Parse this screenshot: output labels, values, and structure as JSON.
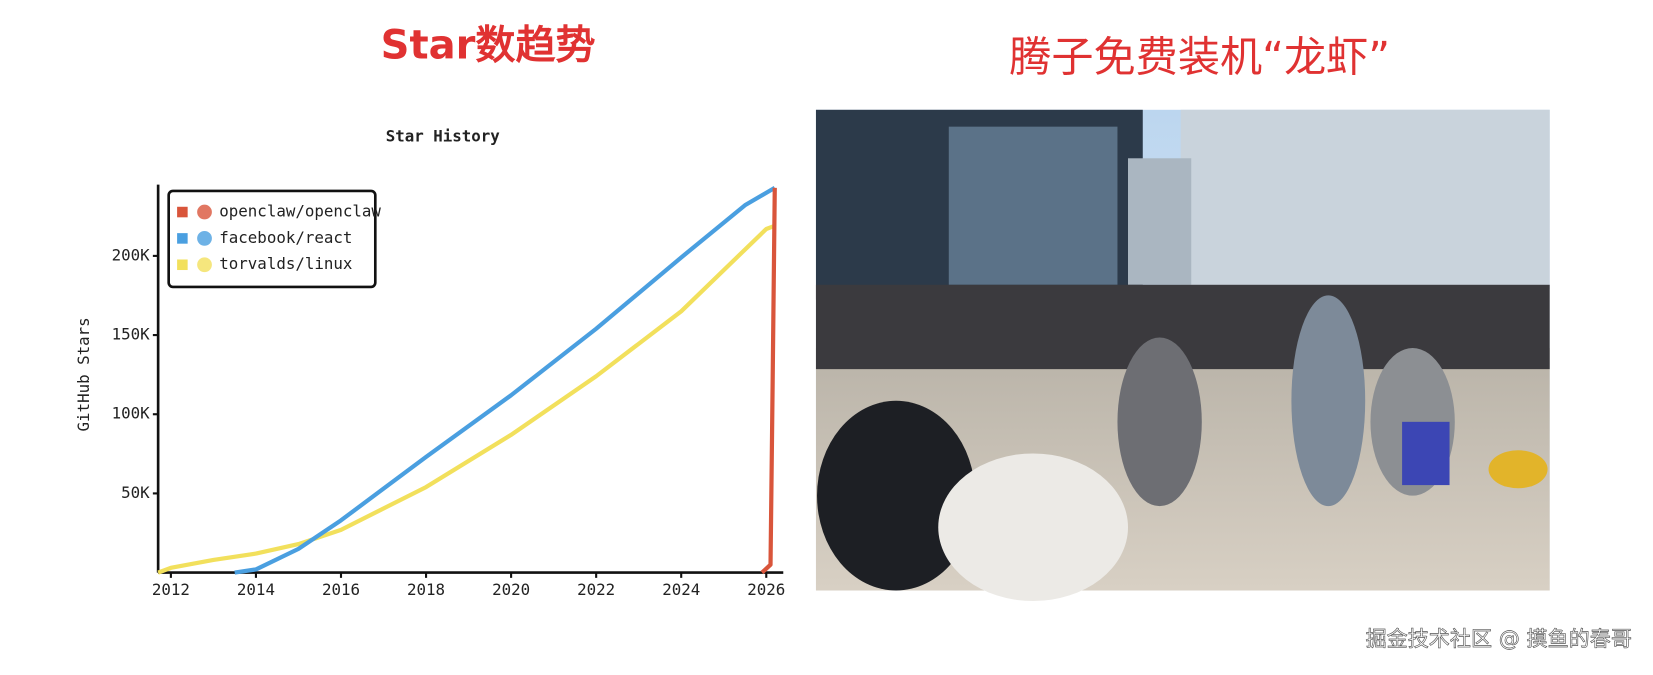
{
  "left_heading": "Star数趋势",
  "right_heading": "腾子免费装机“龙虾”",
  "watermark": "掘金技术社区 @ 摸鱼的春哥",
  "chart_data": {
    "type": "line",
    "title": "Star History",
    "y_label": "GitHub Stars",
    "xlim": [
      2011.7,
      2026.4
    ],
    "xticks": [
      2012,
      2014,
      2016,
      2018,
      2020,
      2022,
      2024,
      2026
    ],
    "ylim": [
      0,
      245000
    ],
    "yticks": [
      {
        "value": 50000,
        "label": "50K"
      },
      {
        "value": 100000,
        "label": "100K"
      },
      {
        "value": 150000,
        "label": "150K"
      },
      {
        "value": 200000,
        "label": "200K"
      }
    ],
    "legend": "upper left",
    "series": [
      {
        "name": "openclaw/openclaw",
        "color": "#d9553b",
        "x": [
          2025.9,
          2026.1,
          2026.15,
          2026.2
        ],
        "values": [
          0,
          5000,
          120000,
          243000
        ]
      },
      {
        "name": "facebook/react",
        "color": "#4a9fe0",
        "x": [
          2013.5,
          2014,
          2015,
          2016,
          2018,
          2020,
          2022,
          2024,
          2025.5,
          2026.2
        ],
        "values": [
          0,
          2000,
          15000,
          33000,
          73000,
          112000,
          154000,
          199000,
          232000,
          243000
        ]
      },
      {
        "name": "torvalds/linux",
        "color": "#f2e05c",
        "x": [
          2011.7,
          2012,
          2013,
          2014,
          2015,
          2016,
          2018,
          2020,
          2022,
          2024,
          2026,
          2026.2
        ],
        "values": [
          0,
          3000,
          8000,
          12000,
          18000,
          27000,
          54000,
          87000,
          124000,
          165000,
          217000,
          219000
        ]
      }
    ]
  }
}
